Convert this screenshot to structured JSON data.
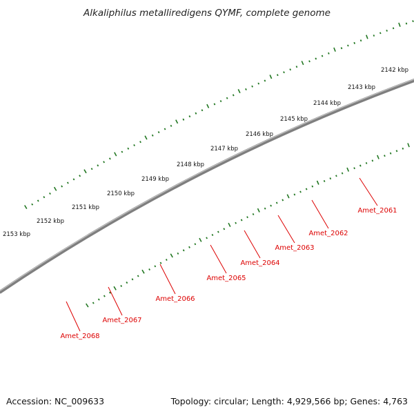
{
  "title": "Alkaliphilus metalliredigens QYMF, complete genome",
  "footer": {
    "accession_label": "Accession:",
    "accession": "NC_009633",
    "topology_label": "Topology:",
    "topology": "circular",
    "length_label": "Length:",
    "length": "4,929,566 bp",
    "genes_label": "Genes:",
    "genes": "4,763",
    "left": "Accession: NC_009633",
    "right": "Topology: circular; Length: 4,929,566 bp; Genes: 4,763"
  },
  "ticks": {
    "labels": [
      "2142 kbp",
      "2143 kbp",
      "2144 kbp",
      "2145 kbp",
      "2146 kbp",
      "2147 kbp",
      "2148 kbp",
      "2149 kbp",
      "2150 kbp",
      "2151 kbp",
      "2152 kbp",
      "2153 kbp"
    ],
    "color": "#227722"
  },
  "colors": {
    "backbone": "#7f7f7f",
    "cds": "#ee0000",
    "blue": "#4682b4",
    "navy": "#000080",
    "aqua": "#00d787",
    "purple": "#4b3f8f",
    "orange": "#ff8c00",
    "green": "#32cd32",
    "label": "#dd0000"
  },
  "genes": [
    {
      "name": "Amet_2061",
      "type": "blue"
    },
    {
      "name": "Amet_2062",
      "type": "blue"
    },
    {
      "name": "Amet_2063",
      "type": "purple"
    },
    {
      "name": "Amet_2064",
      "type": "purple"
    },
    {
      "name": "Amet_2065",
      "type": "blue"
    },
    {
      "name": "Amet_2066",
      "type": "aqua"
    },
    {
      "name": "Amet_2067",
      "type": "navy"
    },
    {
      "name": "Amet_2068",
      "type": "blue"
    }
  ]
}
